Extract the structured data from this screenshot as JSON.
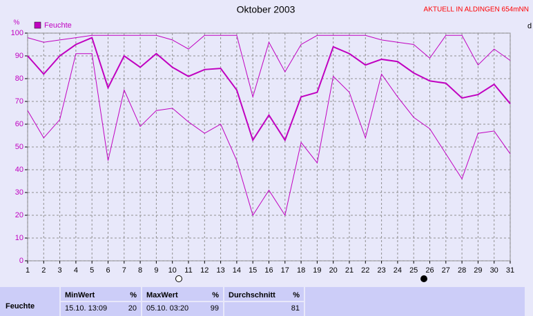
{
  "chart_data": {
    "type": "line",
    "title": "Oktober 2003",
    "header_note": "AKTUELL IN ALDINGEN 654mNN",
    "y_unit": "%",
    "right_edge_label": "d",
    "x": [
      1,
      2,
      3,
      4,
      5,
      6,
      7,
      8,
      9,
      10,
      11,
      12,
      13,
      14,
      15,
      16,
      17,
      18,
      19,
      20,
      21,
      22,
      23,
      24,
      25,
      26,
      27,
      28,
      29,
      30,
      31
    ],
    "xlim": [
      1,
      31
    ],
    "xticks": [
      1,
      2,
      3,
      4,
      5,
      6,
      7,
      8,
      9,
      10,
      11,
      12,
      13,
      14,
      15,
      16,
      17,
      18,
      19,
      20,
      21,
      22,
      23,
      24,
      25,
      26,
      27,
      28,
      29,
      30,
      31
    ],
    "ylim": [
      0,
      100
    ],
    "yticks": [
      0,
      10,
      20,
      30,
      40,
      50,
      60,
      70,
      80,
      90,
      100
    ],
    "grid": true,
    "series": [
      {
        "name": "Feuchte",
        "color": "#c000c0",
        "width": 2,
        "values": [
          90,
          82,
          90,
          95,
          98,
          76,
          90,
          85,
          91,
          85,
          81,
          84,
          84.5,
          75,
          53,
          64,
          53,
          72,
          74,
          94,
          91,
          86,
          88.5,
          87.5,
          82.5,
          79,
          78,
          71.5,
          73,
          77.5,
          69
        ]
      },
      {
        "color": "#c000c0",
        "width": 1,
        "values": [
          98,
          96,
          97,
          98,
          99,
          99,
          99,
          99,
          99,
          97,
          93,
          99,
          99,
          99,
          72,
          96,
          83,
          95,
          99,
          99,
          99,
          99,
          97,
          96,
          95,
          89,
          99,
          99,
          86,
          93,
          88
        ]
      },
      {
        "color": "#c000c0",
        "width": 1,
        "values": [
          66,
          54,
          62,
          91,
          91,
          44,
          75,
          59,
          66,
          67,
          61,
          56,
          60,
          44,
          20,
          31,
          20,
          52,
          43,
          81,
          74,
          54,
          82,
          72,
          63,
          58,
          47,
          36,
          56,
          57,
          47
        ]
      }
    ]
  },
  "summary_table": {
    "headers": [
      "MinWert",
      "%",
      "MaxWert",
      "%",
      "Durchschnitt",
      "%"
    ],
    "rows": [
      [
        "Feuchte",
        "15.10. 13:09",
        "20",
        "05.10. 03:20",
        "99",
        "81"
      ]
    ]
  }
}
